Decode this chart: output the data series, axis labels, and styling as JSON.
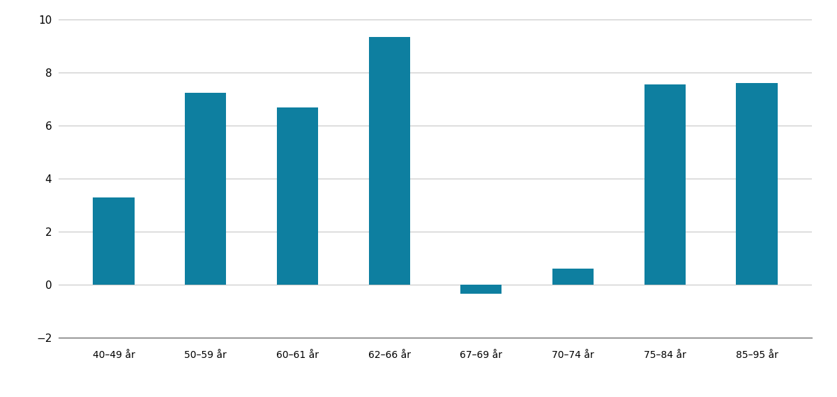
{
  "categories": [
    "40–49 år",
    "50–59 år",
    "60–61 år",
    "62–66 år",
    "67–69 år",
    "70–74 år",
    "75–84 år",
    "85–95 år"
  ],
  "values": [
    3.3,
    7.25,
    6.7,
    9.35,
    -0.35,
    0.6,
    7.55,
    7.6
  ],
  "bar_color": "#0e7fa0",
  "ylim": [
    -2,
    10
  ],
  "yticks": [
    -2,
    0,
    2,
    4,
    6,
    8,
    10
  ],
  "background_color": "#ffffff",
  "grid_color": "#c0c0c0",
  "bar_width": 0.45
}
